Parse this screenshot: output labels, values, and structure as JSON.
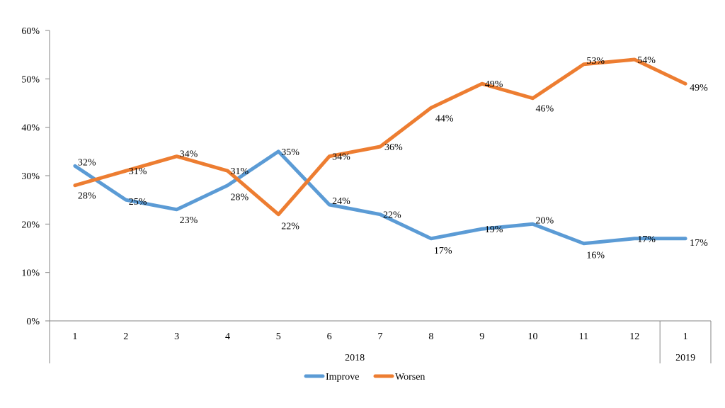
{
  "chart_data": {
    "type": "line",
    "categories": [
      "1",
      "2",
      "3",
      "4",
      "5",
      "6",
      "7",
      "8",
      "9",
      "10",
      "11",
      "12",
      "1"
    ],
    "groups": [
      {
        "label": "2018",
        "count": 12
      },
      {
        "label": "2019",
        "count": 1
      }
    ],
    "series": [
      {
        "name": "Improve",
        "color": "#5B9BD5",
        "values": [
          32,
          25,
          23,
          28,
          35,
          24,
          22,
          17,
          19,
          20,
          16,
          17,
          17
        ],
        "labels": [
          "32%",
          "25%",
          "23%",
          "28%",
          "35%",
          "24%",
          "22%",
          "17%",
          "19%",
          "20%",
          "16%",
          "17%",
          "17%"
        ]
      },
      {
        "name": "Worsen",
        "color": "#ED7D31",
        "values": [
          28,
          31,
          34,
          31,
          22,
          34,
          36,
          44,
          49,
          46,
          53,
          54,
          49
        ],
        "labels": [
          "28%",
          "31%",
          "34%",
          "31%",
          "22%",
          "34%",
          "36%",
          "44%",
          "49%",
          "46%",
          "53%",
          "54%",
          "49%"
        ]
      }
    ],
    "yticks": [
      "0%",
      "10%",
      "20%",
      "30%",
      "40%",
      "50%",
      "60%"
    ],
    "ylim": [
      0,
      60
    ],
    "legend": "bottom",
    "grid": false
  }
}
